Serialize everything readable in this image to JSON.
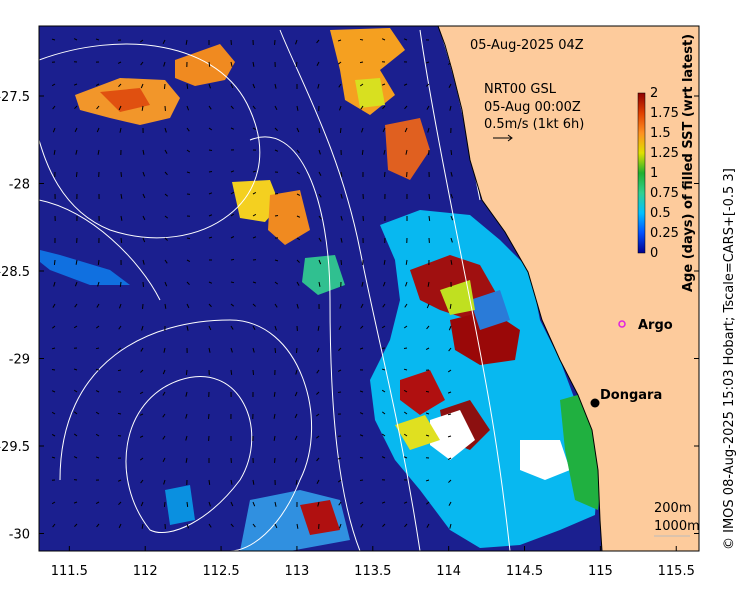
{
  "title": "05-Aug-2025 04Z",
  "current_info": {
    "product": "NRT00 GSL",
    "datetime": "05-Aug 00:00Z",
    "scale": "0.5m/s (1kt 6h)"
  },
  "colorbar": {
    "label": "Age (days) of filled SST (wrt latest)",
    "ticks": [
      "2",
      "1.75",
      "1.5",
      "1.25",
      "1",
      "0.75",
      "0.5",
      "0.25",
      "0"
    ]
  },
  "locations": [
    {
      "name": "Argo",
      "lon": 114.95,
      "lat": -28.88,
      "marker": "open-circle"
    },
    {
      "name": "Dongara",
      "lon": 114.93,
      "lat": -29.25,
      "marker": "filled-dot"
    }
  ],
  "axes": {
    "x_ticks": [
      "111.5",
      "112",
      "112.5",
      "113",
      "113.5",
      "114",
      "114.5",
      "115",
      "115.5"
    ],
    "y_ticks": [
      "-27.5",
      "-28",
      "-28.5",
      "-29",
      "-29.5",
      "-30"
    ],
    "xlim": [
      111.3,
      115.65
    ],
    "ylim": [
      -30.1,
      -27.1
    ]
  },
  "isobaths": [
    "200m",
    "1000m"
  ],
  "credit": "© IMOS 08-Aug-2025 15:03 Hobart; Tscale=CARS+[-0.5 3]",
  "colors": {
    "ocean": "#1b1f8f",
    "land": "#fdcb9c",
    "argo": "#e020e0"
  }
}
